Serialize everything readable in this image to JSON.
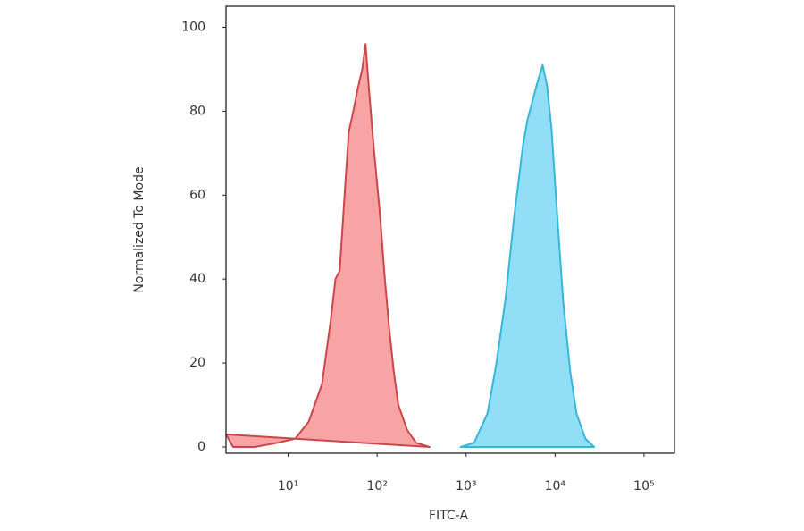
{
  "chart_data": {
    "type": "area",
    "xlabel": "FITC-A",
    "ylabel": "Normalized To Mode",
    "xscale": "log",
    "grid": false,
    "xlim": [
      2,
      220000
    ],
    "ylim": [
      -1.5,
      105
    ],
    "xticks": [
      {
        "value": 10,
        "label": "10¹"
      },
      {
        "value": 100,
        "label": "10²"
      },
      {
        "value": 1000,
        "label": "10³"
      },
      {
        "value": 10000,
        "label": "10⁴"
      },
      {
        "value": 100000,
        "label": "10⁵"
      }
    ],
    "yticks": [
      0,
      20,
      40,
      60,
      80,
      100
    ],
    "series": [
      {
        "color": "#f89a9a",
        "edgecolor": "#c9474c",
        "x": [
          2.0,
          2.4,
          4.2,
          7.6,
          12,
          17,
          24,
          30,
          34,
          38,
          43,
          48,
          54,
          60,
          68,
          74,
          81,
          91,
          108,
          122,
          137,
          154,
          173,
          218,
          274,
          390
        ],
        "values": [
          3,
          0,
          0,
          1,
          2,
          6,
          15,
          30,
          40,
          42,
          60,
          75,
          80,
          85,
          90,
          96,
          85,
          72,
          55,
          40,
          28,
          18,
          10,
          4,
          1,
          0
        ]
      },
      {
        "color": "#84dcf6",
        "edgecolor": "#37b6d9",
        "x": [
          870,
          1230,
          1740,
          2190,
          2760,
          3470,
          4370,
          4900,
          5500,
          6170,
          7240,
          8130,
          9120,
          10200,
          12300,
          14800,
          17400,
          21900,
          27500
        ],
        "values": [
          0,
          1,
          8,
          20,
          35,
          55,
          72,
          78,
          82,
          86,
          91,
          86,
          76,
          60,
          35,
          18,
          8,
          2,
          0
        ]
      }
    ]
  }
}
